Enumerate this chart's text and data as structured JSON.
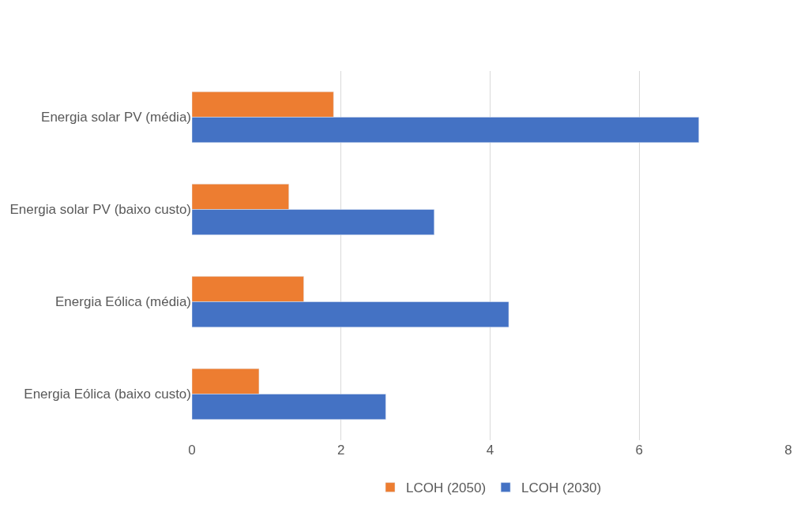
{
  "chart_data": {
    "type": "bar",
    "orientation": "horizontal",
    "categories": [
      "Energia solar PV (média)",
      "Energia solar PV (baixo custo)",
      "Energia Eólica (média)",
      "Energia Eólica (baixo custo)"
    ],
    "series": [
      {
        "name": "LCOH (2050)",
        "color": "#ed7d31",
        "values": [
          1.9,
          1.3,
          1.5,
          0.9
        ]
      },
      {
        "name": "LCOH (2030)",
        "color": "#4472c4",
        "values": [
          6.8,
          3.25,
          4.25,
          2.6
        ]
      }
    ],
    "xlim": [
      0,
      8
    ],
    "xticks": [
      0,
      2,
      4,
      6,
      8
    ],
    "grid": "x",
    "legend": "bottom"
  }
}
